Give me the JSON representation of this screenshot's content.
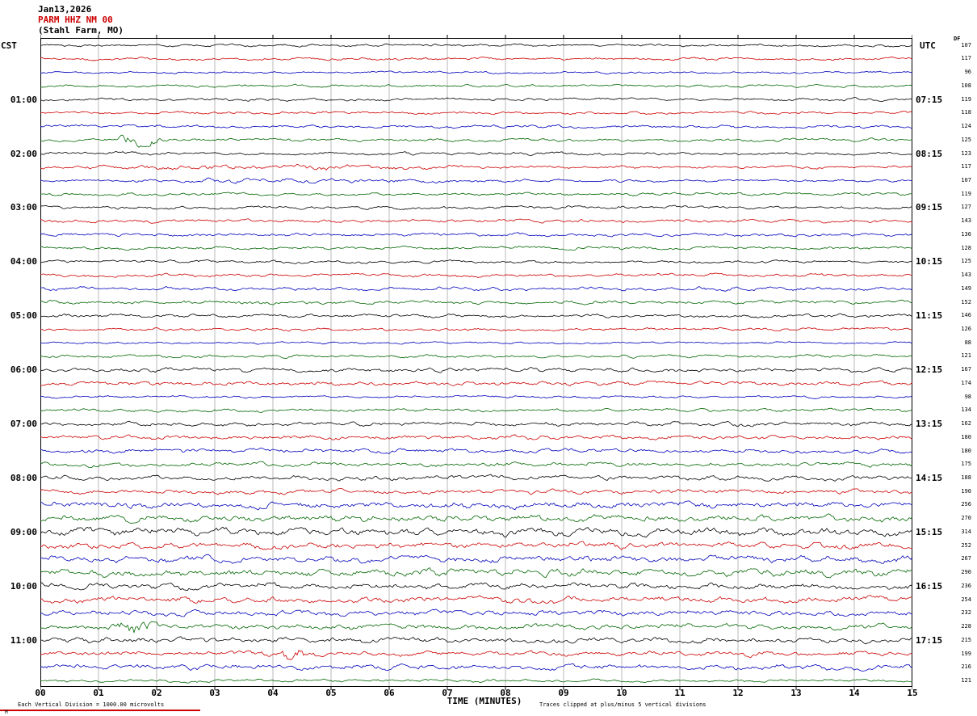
{
  "title": {
    "date": "Jan13,2026",
    "station": "PARM HHZ NM 00",
    "location": "(Stahl Farm, MO)"
  },
  "header": {
    "left": "CST",
    "right": "UTC",
    "gain_label": "DF"
  },
  "x_axis": {
    "title": "TIME (MINUTES)",
    "tick_labels": [
      "00",
      "01",
      "02",
      "03",
      "04",
      "05",
      "06",
      "07",
      "08",
      "09",
      "10",
      "11",
      "12",
      "13",
      "14",
      "15"
    ]
  },
  "footer": {
    "left_note": "Each Vertical Division = 1000.00 microvolts",
    "right_note": "Traces clipped at plus/minus 5 vertical divisions",
    "corner_mark": "M"
  },
  "left_time_labels": [
    "01:00",
    "02:00",
    "03:00",
    "04:00",
    "05:00",
    "06:00",
    "07:00",
    "08:00",
    "09:00",
    "10:00",
    "11:00"
  ],
  "right_time_labels": [
    "07:15",
    "08:15",
    "09:15",
    "10:15",
    "11:15",
    "12:15",
    "13:15",
    "14:15",
    "15:15",
    "16:15",
    "17:15"
  ],
  "label_start_row": 4,
  "label_row_step": 4,
  "chart_data": {
    "type": "line",
    "description": "Helicorder seismogram, 48 rows of 15 minutes each starting 00:00 CST Jan 13 2026, station PARM HHZ NM 00 (Stahl Farm, MO)",
    "rows": 48,
    "minutes_per_row": 15,
    "x_range_minutes": [
      0,
      15
    ],
    "trace_colors_cycle": [
      "#000000",
      "#cc0000",
      "#0000bb",
      "#006600"
    ],
    "row_amplitude_values": [
      107,
      117,
      96,
      108,
      119,
      118,
      124,
      125,
      123,
      117,
      107,
      119,
      127,
      143,
      136,
      128,
      125,
      143,
      149,
      152,
      146,
      126,
      88,
      121,
      167,
      174,
      98,
      134,
      162,
      180,
      180,
      175,
      188,
      190,
      256,
      270,
      314,
      252,
      267,
      290,
      236,
      254,
      232,
      228,
      215,
      199,
      216,
      121
    ],
    "events": [
      {
        "row": 7,
        "minute": 1.7,
        "boost": 4.0,
        "width_min": 0.25
      },
      {
        "row": 9,
        "minute": 4.0,
        "boost": 0.9,
        "width_min": 2.5
      },
      {
        "row": 10,
        "minute": 4.5,
        "boost": 0.8,
        "width_min": 2.0
      },
      {
        "row": 43,
        "minute": 1.6,
        "boost": 3.0,
        "width_min": 0.2
      },
      {
        "row": 45,
        "minute": 4.3,
        "boost": 2.5,
        "width_min": 0.2
      }
    ],
    "grid": {
      "vertical_lines_every_minute": true,
      "color": "#8a8a8a"
    },
    "clip_note": "Traces clipped at plus/minus 5 vertical divisions",
    "vertical_division_microvolts": 1000.0
  }
}
